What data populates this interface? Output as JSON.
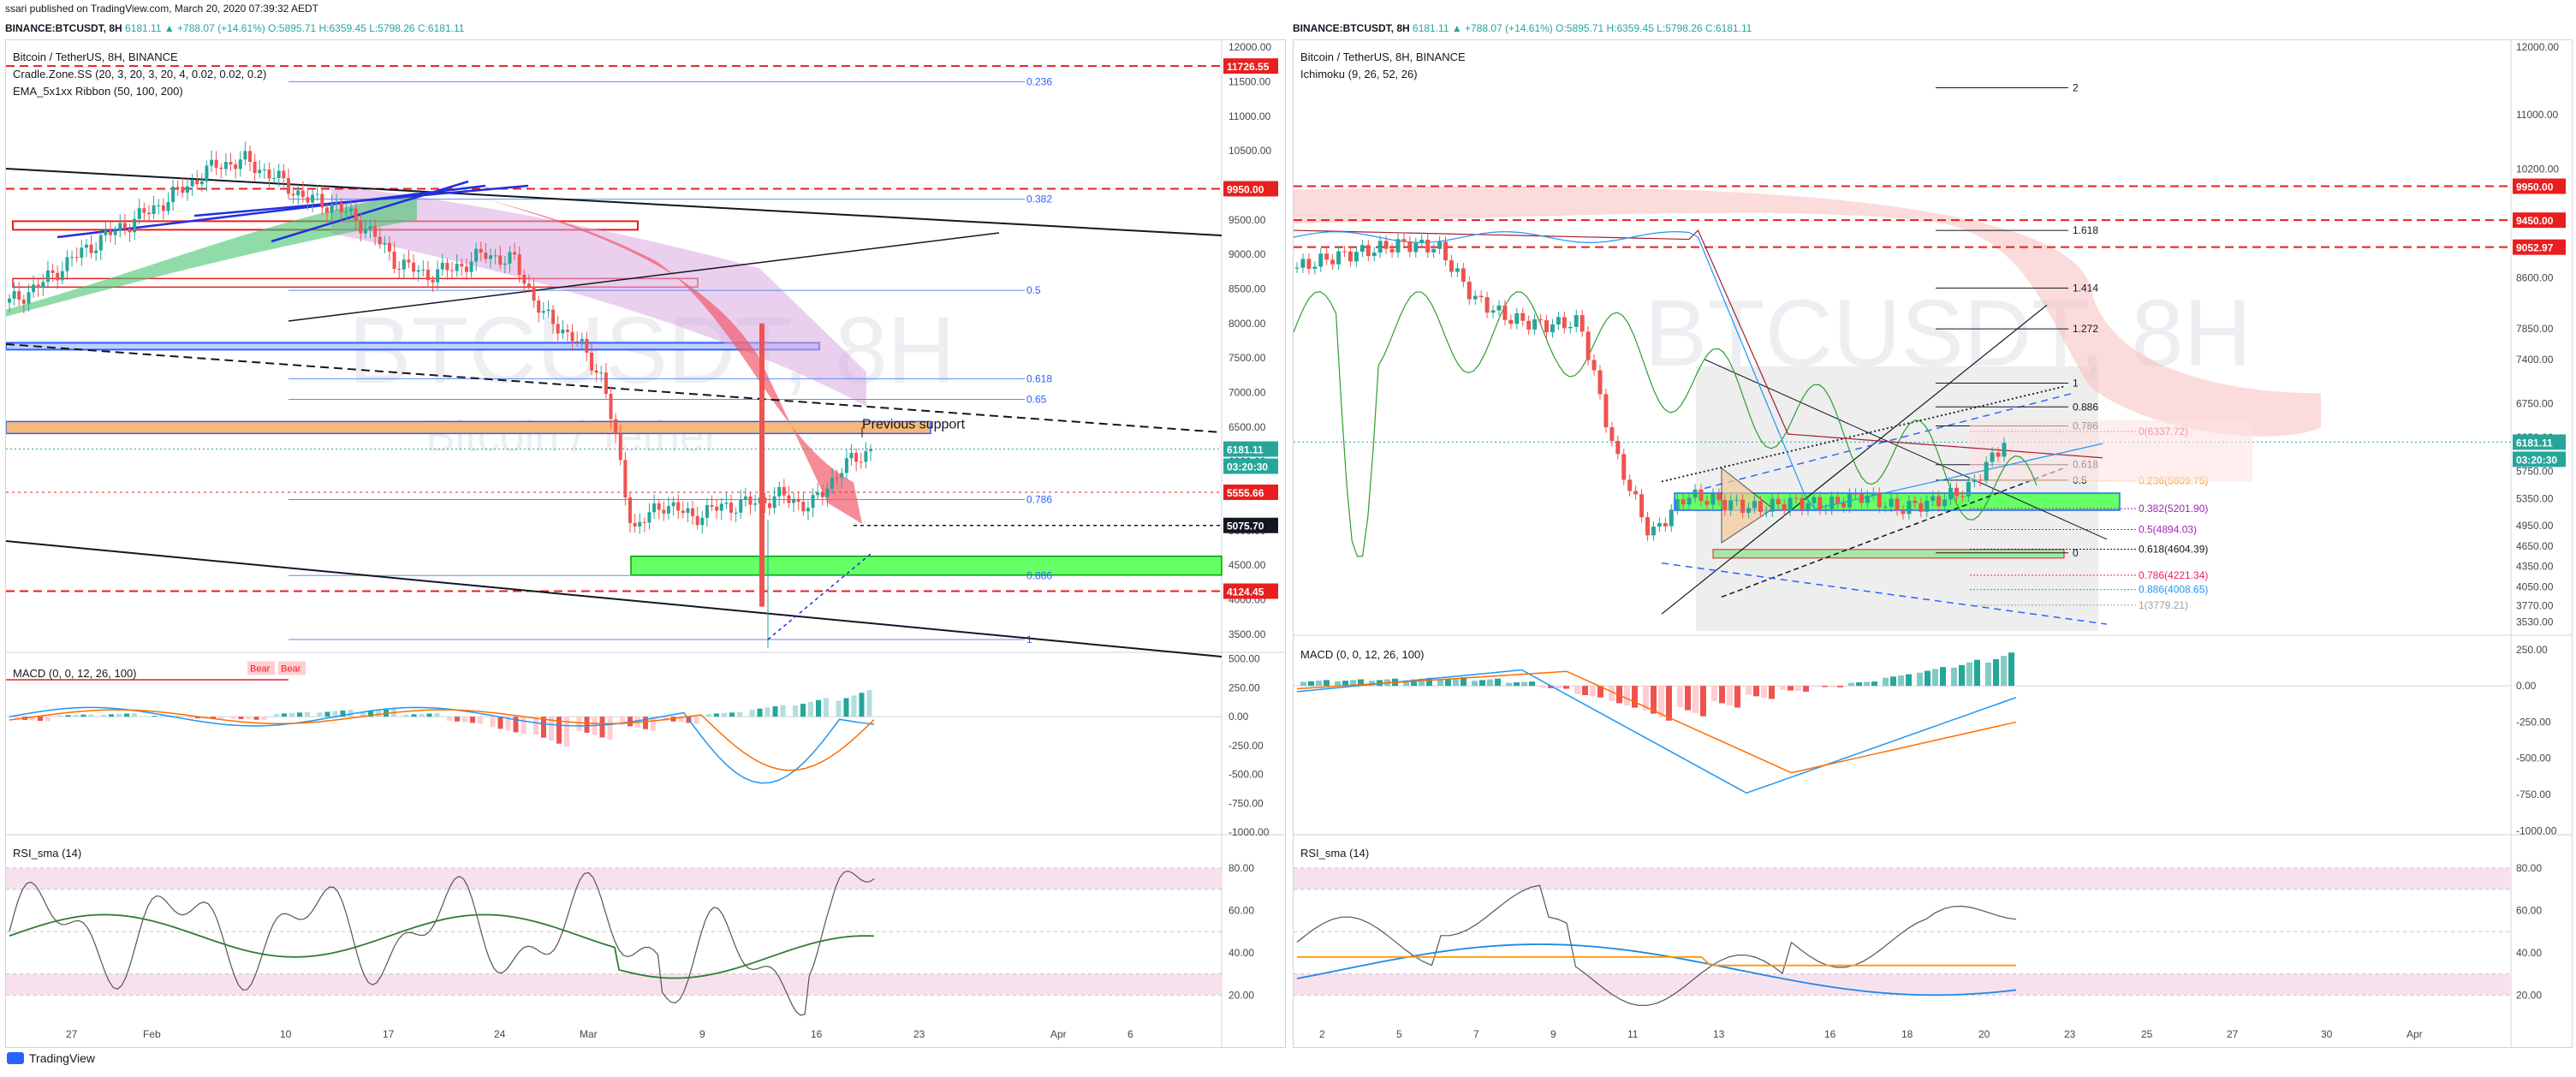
{
  "header": {
    "published_line": "ssari published on TradingView.com, March 20, 2020 07:39:32 AEDT",
    "left_symbol": "BINANCE:BTCUSDT, 8H",
    "right_symbol": "BINANCE:BTCUSDT, 8H",
    "price_line": "6181.11 ▲ +788.07 (+14.61%) O:5895.71 H:6359.45 L:5798.26 C:6181.11"
  },
  "left": {
    "title": "Bitcoin / TetherUS, 8H, BINANCE",
    "indicator1": "Cradle.Zone.SS (20, 3, 20, 3, 20, 4, 0.02, 0.02, 0.2)",
    "indicator2": "EMA_5x1xx Ribbon (50, 100, 200)",
    "watermark": "BTCUSDT, 8H",
    "watermark2": "Bitcoin / Tether",
    "annotation": "Previous support",
    "price_axis": [
      "12000.00",
      "11500.00",
      "11000.00",
      "10500.00",
      "10000.00",
      "9500.00",
      "9000.00",
      "8500.00",
      "8000.00",
      "7500.00",
      "7000.00",
      "6500.00",
      "6000.00",
      "5500.00",
      "5000.00",
      "4500.00",
      "4000.00",
      "3500.00"
    ],
    "fib_levels": [
      "0.236",
      "0.382",
      "0.5",
      "0.618",
      "0.65",
      "0.786",
      "0.886",
      "1"
    ],
    "price_tags": [
      "11726.55",
      "9950.00",
      "6181.11",
      "03:20:30",
      "5555.66",
      "5075.70",
      "4124.45"
    ],
    "macd_title": "MACD (0, 0, 12, 26, 100)",
    "macd_axis": [
      "500.00",
      "250.00",
      "0.00",
      "-250.00",
      "-500.00",
      "-750.00",
      "-1000.00"
    ],
    "bear_labels": [
      "Bear",
      "Bear"
    ],
    "rsi_title": "RSI_sma (14)",
    "rsi_axis": [
      "80.00",
      "60.00",
      "40.00",
      "20.00"
    ],
    "time_axis": [
      "27",
      "Feb",
      "10",
      "17",
      "24",
      "Mar",
      "9",
      "16",
      "23",
      "Apr",
      "6"
    ]
  },
  "right": {
    "title": "Bitcoin / TetherUS, 8H, BINANCE",
    "indicator1": "Ichimoku (9, 26, 52, 26)",
    "watermark": "BTCUSDT, 8H",
    "price_axis": [
      "12000.00",
      "11000.00",
      "10200.00",
      "8600.00",
      "7850.00",
      "7400.00",
      "6750.00",
      "6250.00",
      "5750.00",
      "5350.00",
      "4950.00",
      "4650.00",
      "4350.00",
      "4050.00",
      "3770.00",
      "3530.00"
    ],
    "price_tags": [
      "9950.00",
      "9450.00",
      "9052.97",
      "6181.11",
      "03:20:30"
    ],
    "fib_ext": [
      "2",
      "1.618",
      "1.414",
      "1.272",
      "1",
      "0.886",
      "0.786",
      "0.618",
      "0.5",
      "0"
    ],
    "fib_ret": [
      "0(6337.72)",
      "0.236(5609.75)",
      "0.382(5201.90)",
      "0.5(4894.03)",
      "0.618(4604.39)",
      "0.786(4221.34)",
      "0.886(4008.65)",
      "1(3779.21)"
    ],
    "macd_title": "MACD (0, 0, 12, 26, 100)",
    "macd_axis": [
      "250.00",
      "0.00",
      "-250.00",
      "-500.00",
      "-750.00",
      "-1000.00"
    ],
    "rsi_title": "RSI_sma (14)",
    "rsi_axis": [
      "80.00",
      "60.00",
      "40.00",
      "20.00"
    ],
    "time_axis": [
      "2",
      "5",
      "7",
      "9",
      "11",
      "13",
      "16",
      "18",
      "20",
      "23",
      "25",
      "27",
      "30",
      "Apr"
    ]
  },
  "footer": {
    "brand": "TradingView"
  },
  "colors": {
    "up": "#26a69a",
    "down": "#ef5350",
    "red_level": "#e91e1e",
    "blue": "#2962ff",
    "green_zone": "#66ff66",
    "orange_zone": "#f7b97a"
  },
  "chart_data": [
    {
      "type": "candlestick",
      "title": "Bitcoin / TetherUS, 8H, BINANCE",
      "ylim": [
        3300,
        12100
      ],
      "x": [
        "27",
        "Feb",
        "10",
        "17",
        "24",
        "Mar",
        "9",
        "16",
        "23",
        "Apr",
        "6"
      ],
      "close_path": [
        8300,
        8550,
        8900,
        9200,
        9450,
        9700,
        10000,
        10300,
        10350,
        10100,
        9800,
        9700,
        9400,
        8900,
        8700,
        8800,
        9000,
        8900,
        8100,
        7800,
        7200,
        5000,
        5400,
        5200,
        5350,
        5400,
        5500,
        5350,
        5900,
        6181
      ],
      "levels": {
        "red_dashed": [
          11726.55,
          9950,
          4124.45
        ],
        "black": [
          5075.7
        ],
        "red_dotted": [
          5555.66
        ]
      },
      "macd_hist": [
        -40,
        20,
        30,
        10,
        -20,
        -30,
        40,
        60,
        70,
        30,
        -60,
        -150,
        -260,
        -200,
        -120,
        -60,
        40,
        100,
        160,
        230
      ]
    },
    {
      "type": "candlestick",
      "title": "Bitcoin / TetherUS, 8H, BINANCE",
      "ylim": [
        3400,
        12100
      ],
      "x": [
        "2",
        "5",
        "7",
        "9",
        "11",
        "13",
        "16",
        "18",
        "20",
        "23",
        "25",
        "27",
        "30",
        "Apr"
      ],
      "close_path": [
        8750,
        8900,
        9000,
        9100,
        9050,
        8300,
        8000,
        7900,
        7950,
        6000,
        4800,
        5400,
        5300,
        5200,
        5300,
        5250,
        5400,
        5200,
        5300,
        5500,
        6181
      ],
      "fib_retracement": [
        6337.72,
        5609.75,
        5201.9,
        4894.03,
        4604.39,
        4221.34,
        4008.65,
        3779.21
      ],
      "macd_hist": [
        40,
        45,
        50,
        55,
        60,
        50,
        30,
        -20,
        -80,
        -150,
        -240,
        -210,
        -150,
        -90,
        -40,
        -10,
        30,
        80,
        130,
        180,
        230
      ]
    }
  ]
}
